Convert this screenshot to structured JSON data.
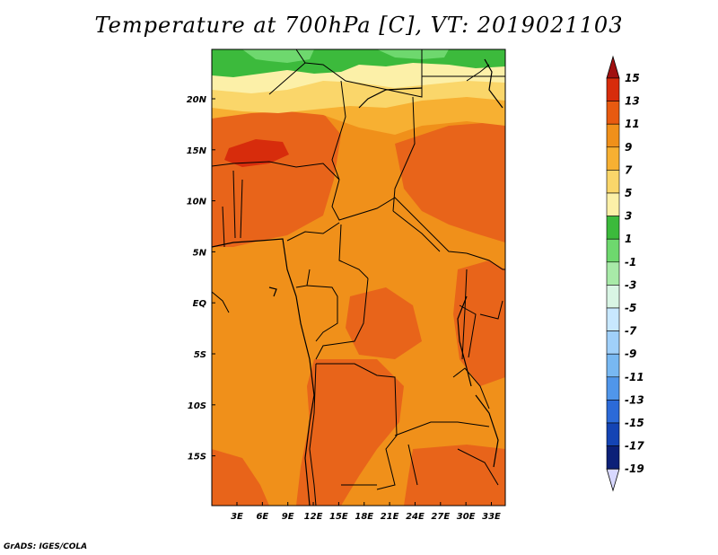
{
  "title": "Temperature at 700hPa [C], VT: 2019021103",
  "credit": "GrADS: IGES/COLA",
  "map": {
    "lat_ticks": [
      "20N",
      "15N",
      "10N",
      "5N",
      "EQ",
      "5S",
      "10S",
      "15S"
    ],
    "lon_ticks": [
      "3E",
      "6E",
      "9E",
      "12E",
      "15E",
      "18E",
      "21E",
      "24E",
      "27E",
      "30E",
      "33E"
    ]
  },
  "colorbar": {
    "labels": [
      "15",
      "13",
      "11",
      "9",
      "7",
      "5",
      "3",
      "1",
      "-1",
      "-3",
      "-5",
      "-7",
      "-9",
      "-11",
      "-13",
      "-15",
      "-17",
      "-19"
    ],
    "colors": [
      "#a01010",
      "#d72c0c",
      "#e85a10",
      "#f0901a",
      "#f7b032",
      "#fad66a",
      "#fcf0a8",
      "#3cba3c",
      "#6ed86e",
      "#a8eaa8",
      "#d9f5e4",
      "#c8e8ff",
      "#a0d0fa",
      "#78b8f2",
      "#5096ea",
      "#2c6ad8",
      "#1444b4",
      "#0c2078",
      "#d8d8ff"
    ]
  }
}
